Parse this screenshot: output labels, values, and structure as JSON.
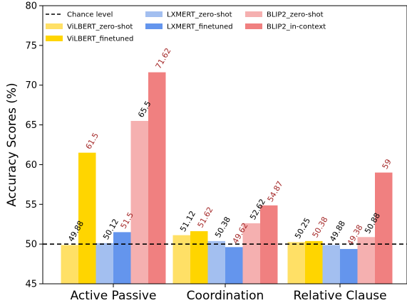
{
  "chart_data": {
    "type": "bar",
    "ylabel": "Accuracy Scores (%)",
    "xlabel": "",
    "ylim": [
      45,
      80
    ],
    "yticks": [
      45,
      50,
      55,
      60,
      65,
      70,
      75,
      80
    ],
    "categories": [
      "Active Passive",
      "Coordination",
      "Relative Clause"
    ],
    "reference_line": {
      "name": "Chance level",
      "value": 50,
      "style": "dashed",
      "color": "#000000"
    },
    "series": [
      {
        "name": "ViLBERT_zero-shot",
        "color": "#FFE066",
        "label_color": "#000000",
        "values": [
          49.88,
          51.12,
          50.25
        ]
      },
      {
        "name": "ViLBERT_finetuned",
        "color": "#FFD500",
        "label_color": "#A52A2A",
        "values": [
          61.5,
          51.62,
          50.38
        ]
      },
      {
        "name": "LXMERT_zero-shot",
        "color": "#A3BFF0",
        "label_color": "#000000",
        "values": [
          50.12,
          50.38,
          49.88
        ]
      },
      {
        "name": "LXMERT_finetuned",
        "color": "#6495ED",
        "label_color": "#A52A2A",
        "values": [
          51.5,
          49.62,
          49.38
        ]
      },
      {
        "name": "BLIP2_zero-shot",
        "color": "#F5B0B0",
        "label_color": "#000000",
        "values": [
          65.5,
          52.62,
          50.88
        ]
      },
      {
        "name": "BLIP2_in-context",
        "color": "#F08080",
        "label_color": "#A52A2A",
        "values": [
          71.62,
          54.87,
          59
        ]
      }
    ],
    "legend": {
      "placement": "top-left",
      "columns": 3,
      "frame": false
    },
    "grid": false
  }
}
